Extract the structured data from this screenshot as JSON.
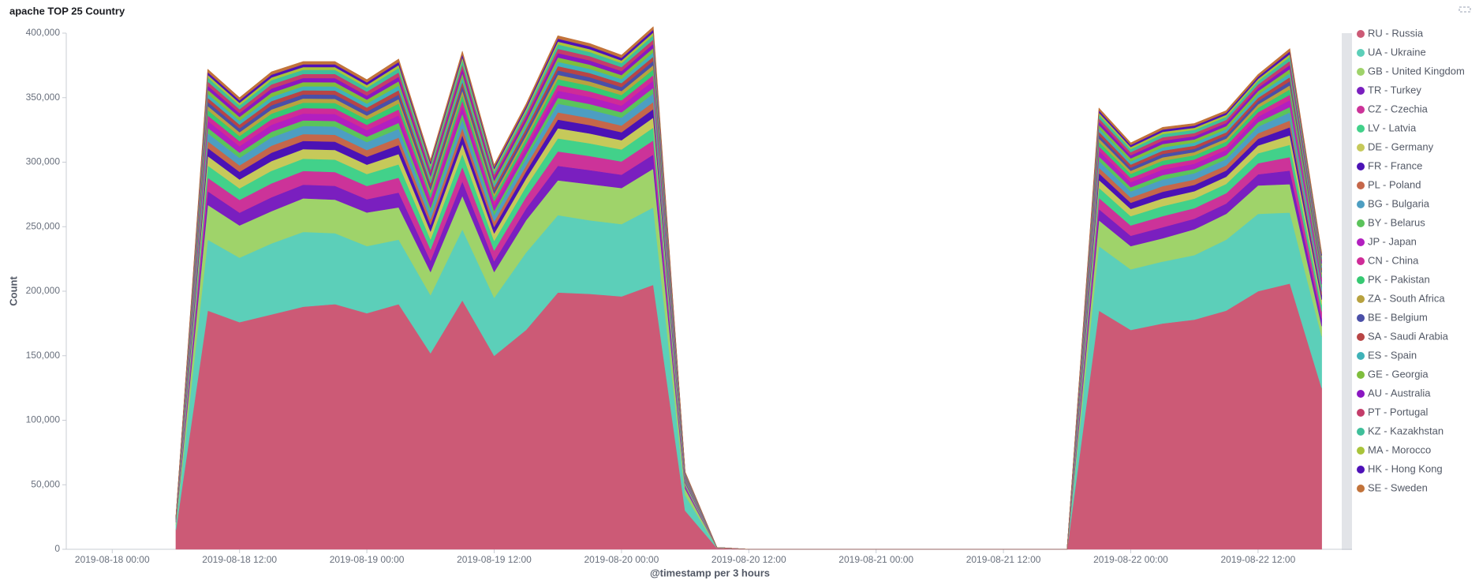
{
  "chart_data": {
    "type": "stacked-area",
    "title": "apache TOP 25 Country",
    "y_label": "Count",
    "x_label": "@timestamp per 3 hours",
    "x": [
      "2019-08-18 06:00",
      "2019-08-18 09:00",
      "2019-08-18 12:00",
      "2019-08-18 15:00",
      "2019-08-18 18:00",
      "2019-08-18 21:00",
      "2019-08-19 00:00",
      "2019-08-19 03:00",
      "2019-08-19 06:00",
      "2019-08-19 09:00",
      "2019-08-19 12:00",
      "2019-08-19 15:00",
      "2019-08-19 18:00",
      "2019-08-19 21:00",
      "2019-08-20 00:00",
      "2019-08-20 03:00",
      "2019-08-20 06:00",
      "2019-08-20 09:00",
      "2019-08-20 12:00",
      "2019-08-20 15:00",
      "2019-08-20 18:00",
      "2019-08-20 21:00",
      "2019-08-21 00:00",
      "2019-08-21 03:00",
      "2019-08-21 06:00",
      "2019-08-21 09:00",
      "2019-08-21 12:00",
      "2019-08-21 15:00",
      "2019-08-21 18:00",
      "2019-08-21 21:00",
      "2019-08-22 00:00",
      "2019-08-22 03:00",
      "2019-08-22 06:00",
      "2019-08-22 09:00",
      "2019-08-22 12:00",
      "2019-08-22 15:00",
      "2019-08-22 18:00"
    ],
    "xlim": [
      "2019-08-17 19:40",
      "2019-08-22 19:40"
    ],
    "xticks": [
      "2019-08-18 00:00",
      "2019-08-18 12:00",
      "2019-08-19 00:00",
      "2019-08-19 12:00",
      "2019-08-20 00:00",
      "2019-08-20 12:00",
      "2019-08-21 00:00",
      "2019-08-21 12:00",
      "2019-08-22 00:00",
      "2019-08-22 12:00"
    ],
    "ylim": [
      0,
      400000
    ],
    "yticks": [
      0,
      {
        "value": 50000,
        "label": "50,000"
      },
      {
        "value": 100000,
        "label": "100,000"
      },
      {
        "value": 150000,
        "label": "150,000"
      },
      {
        "value": 200000,
        "label": "200,000"
      },
      {
        "value": 250000,
        "label": "250,000"
      },
      {
        "value": 300000,
        "label": "300,000"
      },
      {
        "value": 350000,
        "label": "350,000"
      },
      {
        "value": 400000,
        "label": "400,000"
      }
    ],
    "legend": "right",
    "series": [
      {
        "name": "RU - Russia",
        "color": "#cc5a76",
        "values": [
          15000,
          185000,
          176000,
          182000,
          188000,
          190000,
          183000,
          190000,
          152000,
          193000,
          150000,
          170000,
          199000,
          198000,
          196000,
          205000,
          30000,
          1000,
          0,
          0,
          0,
          0,
          0,
          0,
          0,
          0,
          0,
          0,
          0,
          185000,
          170000,
          175000,
          178000,
          185000,
          200000,
          206000,
          125000
        ]
      },
      {
        "name": "UA - Ukraine",
        "color": "#5ccfb9",
        "values": [
          4000,
          55000,
          50000,
          55000,
          58000,
          55000,
          52000,
          50000,
          45000,
          55000,
          45000,
          60000,
          60000,
          57000,
          56000,
          60000,
          12000,
          300,
          0,
          0,
          0,
          0,
          0,
          0,
          0,
          0,
          0,
          0,
          0,
          50000,
          47000,
          48000,
          50000,
          55000,
          60000,
          55000,
          40000
        ]
      },
      {
        "name": "GB - United Kingdom",
        "color": "#9fd36a",
        "values": [
          2000,
          27000,
          25000,
          25000,
          26000,
          26000,
          26000,
          25000,
          18000,
          26000,
          20000,
          25000,
          27000,
          28000,
          28000,
          30000,
          5000,
          100,
          0,
          0,
          0,
          0,
          0,
          0,
          0,
          0,
          0,
          0,
          0,
          20000,
          18000,
          18000,
          20000,
          20000,
          22000,
          22000,
          8000
        ]
      },
      {
        "name": "TR - Turkey",
        "color": "#7a1fbf",
        "values": [
          400,
          10500,
          9900,
          10800,
          10600,
          10700,
          10300,
          11500,
          8700,
          11200,
          8300,
          9000,
          11200,
          10900,
          10300,
          11000,
          1300,
          0,
          0,
          0,
          0,
          0,
          0,
          0,
          0,
          0,
          0,
          0,
          0,
          8700,
          8000,
          8600,
          8200,
          8000,
          8600,
          10500,
          5700
        ]
      },
      {
        "name": "CZ - Czechia",
        "color": "#cc3399",
        "values": [
          400,
          10500,
          9900,
          10800,
          10600,
          10700,
          10300,
          11500,
          8700,
          11200,
          8300,
          9000,
          11200,
          10900,
          10300,
          11000,
          1300,
          0,
          0,
          0,
          0,
          0,
          0,
          0,
          0,
          0,
          0,
          0,
          0,
          8700,
          8000,
          8600,
          8200,
          8000,
          8600,
          10500,
          5700
        ]
      },
      {
        "name": "LV - Latvia",
        "color": "#42d18a",
        "values": [
          360,
          9450,
          8910,
          9720,
          9540,
          9630,
          9270,
          10350,
          7830,
          10080,
          7470,
          8100,
          10080,
          9810,
          9270,
          9900,
          1170,
          0,
          0,
          0,
          0,
          0,
          0,
          0,
          0,
          0,
          0,
          0,
          0,
          7830,
          7200,
          7740,
          7380,
          7200,
          7740,
          9450,
          5130
        ]
      },
      {
        "name": "DE - Germany",
        "color": "#c6c95a",
        "values": [
          280,
          7350,
          6930,
          7560,
          7420,
          7490,
          7210,
          8050,
          6090,
          7840,
          5810,
          6300,
          7840,
          7630,
          7210,
          7700,
          910,
          0,
          0,
          0,
          0,
          0,
          0,
          0,
          0,
          0,
          0,
          0,
          0,
          6090,
          5600,
          6020,
          5740,
          5600,
          6020,
          7350,
          3990
        ]
      },
      {
        "name": "FR - France",
        "color": "#4b12b5",
        "values": [
          240,
          6300,
          5940,
          6480,
          6360,
          6420,
          6180,
          6900,
          5220,
          6720,
          4980,
          5400,
          6720,
          6540,
          6180,
          6600,
          780,
          0,
          0,
          0,
          0,
          0,
          0,
          0,
          0,
          0,
          0,
          0,
          0,
          5220,
          4800,
          5160,
          4920,
          4800,
          5160,
          6300,
          3420
        ]
      },
      {
        "name": "PL - Poland",
        "color": "#c5674a",
        "values": [
          200,
          5250,
          4950,
          5400,
          5300,
          5350,
          5150,
          5750,
          4350,
          5600,
          4150,
          4500,
          5600,
          5450,
          5150,
          5500,
          650,
          0,
          0,
          0,
          0,
          0,
          0,
          0,
          0,
          0,
          0,
          0,
          0,
          4350,
          4000,
          4300,
          4100,
          4000,
          4300,
          5250,
          2850
        ]
      },
      {
        "name": "BG - Bulgaria",
        "color": "#4d9ec2",
        "values": [
          240,
          6300,
          5940,
          6480,
          6360,
          6420,
          6180,
          6900,
          5220,
          6720,
          4980,
          5400,
          6720,
          6540,
          6180,
          6600,
          780,
          0,
          0,
          0,
          0,
          0,
          0,
          0,
          0,
          0,
          0,
          0,
          0,
          5220,
          4800,
          5160,
          4920,
          4800,
          5160,
          6300,
          3420
        ]
      },
      {
        "name": "BY - Belarus",
        "color": "#5bc35b",
        "values": [
          160,
          4200,
          3960,
          4320,
          4240,
          4280,
          4120,
          4600,
          3480,
          4480,
          3320,
          3600,
          4480,
          4360,
          4120,
          4400,
          520,
          0,
          0,
          0,
          0,
          0,
          0,
          0,
          0,
          0,
          0,
          0,
          0,
          3480,
          3200,
          3440,
          3280,
          3200,
          3440,
          4200,
          2280
        ]
      },
      {
        "name": "JP - Japan",
        "color": "#b21fbf",
        "values": [
          200,
          5250,
          4950,
          5400,
          5300,
          5350,
          5150,
          5750,
          4350,
          5600,
          4150,
          4500,
          5600,
          5450,
          5150,
          5500,
          650,
          0,
          0,
          0,
          0,
          0,
          0,
          0,
          0,
          0,
          0,
          0,
          0,
          4350,
          4000,
          4300,
          4100,
          4000,
          4300,
          5250,
          2850
        ]
      },
      {
        "name": "CN - China",
        "color": "#cf2b98",
        "values": [
          160,
          4200,
          3960,
          4320,
          4240,
          4280,
          4120,
          4600,
          3480,
          4480,
          3320,
          3600,
          4480,
          4360,
          4120,
          4400,
          520,
          0,
          0,
          0,
          0,
          0,
          0,
          0,
          0,
          0,
          0,
          0,
          0,
          3480,
          3200,
          3440,
          3280,
          3200,
          3440,
          4200,
          2280
        ]
      },
      {
        "name": "PK - Pakistan",
        "color": "#36c972",
        "values": [
          160,
          4200,
          3960,
          4320,
          4240,
          4280,
          4120,
          4600,
          3480,
          4480,
          3320,
          3600,
          4480,
          4360,
          4120,
          4400,
          520,
          0,
          0,
          0,
          0,
          0,
          0,
          0,
          0,
          0,
          0,
          0,
          0,
          3480,
          3200,
          3440,
          3280,
          3200,
          3440,
          4200,
          2280
        ]
      },
      {
        "name": "ZA - South Africa",
        "color": "#b8a23f",
        "values": [
          120,
          3150,
          2970,
          3240,
          3180,
          3210,
          3090,
          3450,
          2610,
          3360,
          2490,
          2700,
          3360,
          3270,
          3090,
          3300,
          390,
          0,
          0,
          0,
          0,
          0,
          0,
          0,
          0,
          0,
          0,
          0,
          0,
          2610,
          2400,
          2580,
          2460,
          2400,
          2580,
          3150,
          1710
        ]
      },
      {
        "name": "BE - Belgium",
        "color": "#4a4fa8",
        "values": [
          120,
          3150,
          2970,
          3240,
          3180,
          3210,
          3090,
          3450,
          2610,
          3360,
          2490,
          2700,
          3360,
          3270,
          3090,
          3300,
          390,
          0,
          0,
          0,
          0,
          0,
          0,
          0,
          0,
          0,
          0,
          0,
          0,
          2610,
          2400,
          2580,
          2460,
          2400,
          2580,
          3150,
          1710
        ]
      },
      {
        "name": "SA - Saudi Arabia",
        "color": "#b84545",
        "values": [
          120,
          3150,
          2970,
          3240,
          3180,
          3210,
          3090,
          3450,
          2610,
          3360,
          2490,
          2700,
          3360,
          3270,
          3090,
          3300,
          390,
          0,
          0,
          0,
          0,
          0,
          0,
          0,
          0,
          0,
          0,
          0,
          0,
          2610,
          2400,
          2580,
          2460,
          2400,
          2580,
          3150,
          1710
        ]
      },
      {
        "name": "ES - Spain",
        "color": "#3fb2b8",
        "values": [
          120,
          3150,
          2970,
          3240,
          3180,
          3210,
          3090,
          3450,
          2610,
          3360,
          2490,
          2700,
          3360,
          3270,
          3090,
          3300,
          390,
          0,
          0,
          0,
          0,
          0,
          0,
          0,
          0,
          0,
          0,
          0,
          0,
          2610,
          2400,
          2580,
          2460,
          2400,
          2580,
          3150,
          1710
        ]
      },
      {
        "name": "GE - Georgia",
        "color": "#7fbe3d",
        "values": [
          120,
          3150,
          2970,
          3240,
          3180,
          3210,
          3090,
          3450,
          2610,
          3360,
          2490,
          2700,
          3360,
          3270,
          3090,
          3300,
          390,
          0,
          0,
          0,
          0,
          0,
          0,
          0,
          0,
          0,
          0,
          0,
          0,
          2610,
          2400,
          2580,
          2460,
          2400,
          2580,
          3150,
          1710
        ]
      },
      {
        "name": "AU - Australia",
        "color": "#8a17c2",
        "values": [
          120,
          3150,
          2970,
          3240,
          3180,
          3210,
          3090,
          3450,
          2610,
          3360,
          2490,
          2700,
          3360,
          3270,
          3090,
          3300,
          390,
          0,
          0,
          0,
          0,
          0,
          0,
          0,
          0,
          0,
          0,
          0,
          0,
          2610,
          2400,
          2580,
          2460,
          2400,
          2580,
          3150,
          1710
        ]
      },
      {
        "name": "PT - Portugal",
        "color": "#c43d6a",
        "values": [
          120,
          3150,
          2970,
          3240,
          3180,
          3210,
          3090,
          3450,
          2610,
          3360,
          2490,
          2700,
          3360,
          3270,
          3090,
          3300,
          390,
          0,
          0,
          0,
          0,
          0,
          0,
          0,
          0,
          0,
          0,
          0,
          0,
          2610,
          2400,
          2580,
          2460,
          2400,
          2580,
          3150,
          1710
        ]
      },
      {
        "name": "KZ - Kazakhstan",
        "color": "#3fbf9a",
        "values": [
          120,
          3150,
          2970,
          3240,
          3180,
          3210,
          3090,
          3450,
          2610,
          3360,
          2490,
          2700,
          3360,
          3270,
          3090,
          3300,
          390,
          0,
          0,
          0,
          0,
          0,
          0,
          0,
          0,
          0,
          0,
          0,
          0,
          2610,
          2400,
          2580,
          2460,
          2400,
          2580,
          3150,
          1710
        ]
      },
      {
        "name": "MA - Morocco",
        "color": "#a9c43a",
        "values": [
          80,
          2100,
          1980,
          2160,
          2120,
          2140,
          2060,
          2300,
          1740,
          2240,
          1660,
          1800,
          2240,
          2180,
          2060,
          2200,
          260,
          0,
          0,
          0,
          0,
          0,
          0,
          0,
          0,
          0,
          0,
          0,
          0,
          1740,
          1600,
          1720,
          1640,
          1600,
          1720,
          2100,
          1140
        ]
      },
      {
        "name": "HK - Hong Kong",
        "color": "#4e11b8",
        "values": [
          80,
          2100,
          1980,
          2160,
          2120,
          2140,
          2060,
          2300,
          1740,
          2240,
          1660,
          1800,
          2240,
          2180,
          2060,
          2200,
          260,
          0,
          0,
          0,
          0,
          0,
          0,
          0,
          0,
          0,
          0,
          0,
          0,
          1740,
          1600,
          1720,
          1640,
          1600,
          1720,
          2100,
          1140
        ]
      },
      {
        "name": "SE - Sweden",
        "color": "#c2733a",
        "values": [
          80,
          2100,
          1980,
          2160,
          2120,
          2140,
          2060,
          2300,
          1740,
          2240,
          1660,
          1800,
          2240,
          2180,
          2060,
          2200,
          260,
          0,
          0,
          0,
          0,
          0,
          0,
          0,
          0,
          0,
          0,
          0,
          0,
          1740,
          1600,
          1720,
          1640,
          1600,
          1720,
          2100,
          1140
        ]
      }
    ]
  }
}
